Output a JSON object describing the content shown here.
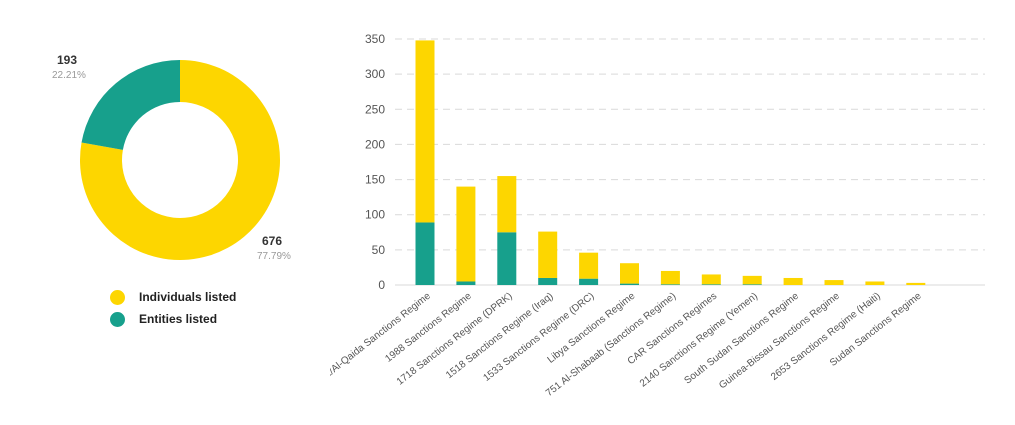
{
  "colors": {
    "individuals": "#FDD600",
    "entities": "#17A08C",
    "grid": "#d9d9d9",
    "axis_text": "#555555"
  },
  "chart_data": [
    {
      "type": "pie",
      "donut": true,
      "series": [
        {
          "name": "Individuals listed",
          "value": 676,
          "percent": "77.79%"
        },
        {
          "name": "Entities listed",
          "value": 193,
          "percent": "22.21%"
        }
      ],
      "legend": "bottom"
    },
    {
      "type": "bar",
      "stacked": true,
      "categories": [
        "ISIL/Al-Qaida Sanctions Regime",
        "1988 Sanctions Regime",
        "1718 Sanctions Regime (DPRK)",
        "1518 Sanctions Regime (Iraq)",
        "1533 Sanctions Regime (DRC)",
        "Libya Sanctions Regime",
        "751 Al-Shabaab (Sanctions Regime)",
        "CAR Sanctions Regimes",
        "2140 Sanctions Regime (Yemen)",
        "South Sudan Sanctions Regime",
        "Guinea-Bissau Sanctions Regime",
        "2653 Sanctions Regime (Haiti)",
        "Sudan Sanctions Regime"
      ],
      "series": [
        {
          "name": "Entities listed",
          "values": [
            89,
            5,
            75,
            10,
            9,
            2,
            1,
            1,
            1,
            0,
            0,
            0,
            0
          ]
        },
        {
          "name": "Individuals listed",
          "values": [
            259,
            135,
            80,
            66,
            37,
            29,
            19,
            14,
            12,
            10,
            7,
            5,
            3
          ]
        }
      ],
      "yticks": [
        0,
        50,
        100,
        150,
        200,
        250,
        300,
        350
      ],
      "ylim": [
        0,
        350
      ],
      "grid": true,
      "grid_style": "dashed"
    }
  ]
}
